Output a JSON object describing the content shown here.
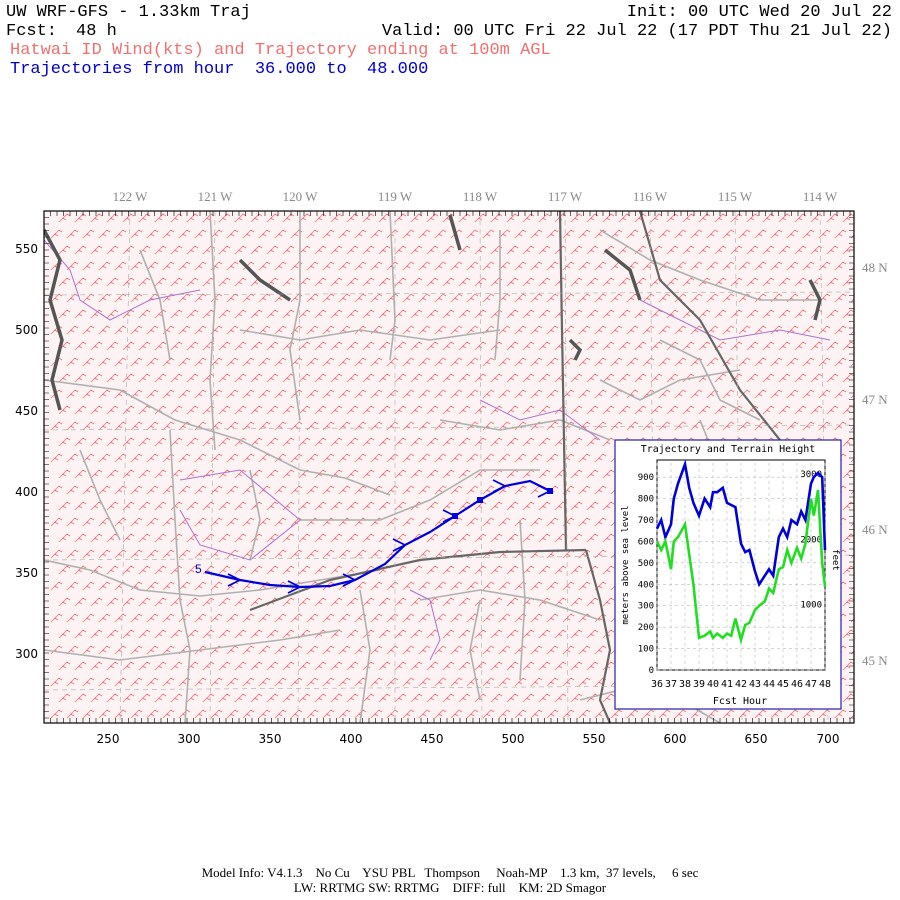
{
  "header": {
    "model_title": "UW WRF-GFS - 1.33km Traj",
    "init": "Init: 00 UTC Wed 20 Jul 22",
    "fcst_label": "Fcst:",
    "fcst_value": "48 h",
    "valid": "Valid: 00 UTC Fri 22 Jul 22 (17 PDT Thu 21 Jul 22)",
    "subtitle": "Hatwai ID Wind(kts) and Trajectory ending at 100m AGL",
    "traj_range": "Trajectories from hour  36.000 to  48.000"
  },
  "map": {
    "lon_labels": [
      "122 W",
      "121 W",
      "120 W",
      "119 W",
      "118 W",
      "117 W",
      "116 W",
      "115 W",
      "114 W"
    ],
    "lat_labels": [
      "48 N",
      "47 N",
      "46 N",
      "45 N"
    ],
    "x_ticks": [
      "250",
      "300",
      "350",
      "400",
      "450",
      "500",
      "550",
      "600",
      "650",
      "700"
    ],
    "y_ticks": [
      "550",
      "500",
      "450",
      "400",
      "350",
      "300"
    ],
    "traj_start_label": "5",
    "colors": {
      "wind": "#f07070",
      "trajectory": "#0000dd",
      "grid": "#aaaaaa",
      "state_border": "#666666",
      "county": "#b0b0b0",
      "river": "#b070d0",
      "bg": "#fbe8ec"
    }
  },
  "inset": {
    "title": "Trajectory and Terrain Height",
    "xlabel": "Fcst Hour",
    "ylabel_left": "meters above sea level",
    "ylabel_right": "feet",
    "x_ticks": [
      "36",
      "37",
      "38",
      "39",
      "40",
      "41",
      "42",
      "43",
      "44",
      "45",
      "46",
      "47",
      "48"
    ],
    "y_ticks_left": [
      "0",
      "100",
      "200",
      "300",
      "400",
      "500",
      "600",
      "700",
      "800",
      "900"
    ],
    "y_ticks_right": [
      "1000",
      "2000",
      "3000"
    ]
  },
  "chart_data": {
    "type": "line",
    "title": "Trajectory and Terrain Height",
    "xlabel": "Fcst Hour",
    "ylabel": "meters above sea level",
    "xlim": [
      36,
      48
    ],
    "ylim": [
      0,
      980
    ],
    "series": [
      {
        "color": "#0000dd",
        "x": [
          36,
          36.3,
          36.6,
          37,
          37.2,
          37.5,
          38,
          38.3,
          38.6,
          39,
          39.4,
          39.8,
          40,
          40.3,
          40.7,
          41,
          41.3,
          41.6,
          42,
          42.3,
          42.6,
          43,
          43.3,
          43.7,
          44,
          44.3,
          44.7,
          45,
          45.3,
          45.6,
          46,
          46.3,
          46.6,
          47,
          47.2,
          47.5,
          47.8,
          48
        ],
        "y": [
          660,
          700,
          620,
          680,
          800,
          870,
          960,
          850,
          780,
          720,
          800,
          760,
          830,
          830,
          850,
          780,
          770,
          760,
          590,
          550,
          560,
          460,
          400,
          440,
          470,
          440,
          620,
          660,
          620,
          700,
          680,
          740,
          700,
          870,
          900,
          920,
          900,
          560
        ]
      },
      {
        "color": "#22dd22",
        "x": [
          36,
          36.3,
          36.6,
          37,
          37.2,
          37.5,
          38,
          38.3,
          38.6,
          39,
          39.4,
          39.8,
          40,
          40.3,
          40.7,
          41,
          41.3,
          41.6,
          42,
          42.3,
          42.6,
          43,
          43.3,
          43.7,
          44,
          44.3,
          44.7,
          45,
          45.3,
          45.6,
          46,
          46.3,
          46.6,
          47,
          47.2,
          47.5,
          47.8,
          48
        ],
        "y": [
          600,
          560,
          600,
          470,
          600,
          620,
          680,
          540,
          400,
          150,
          160,
          180,
          150,
          170,
          150,
          170,
          160,
          240,
          140,
          210,
          220,
          280,
          300,
          320,
          380,
          360,
          470,
          480,
          560,
          500,
          570,
          520,
          590,
          800,
          720,
          840,
          500,
          390
        ]
      }
    ]
  },
  "footer": {
    "line1": "Model Info: V4.1.3    No Cu    YSU PBL   Thompson     Noah-MP    1.3 km,  37 levels,     6 sec",
    "line2": "LW: RRTMG SW: RRTMG    DIFF: full    KM: 2D Smagor"
  }
}
